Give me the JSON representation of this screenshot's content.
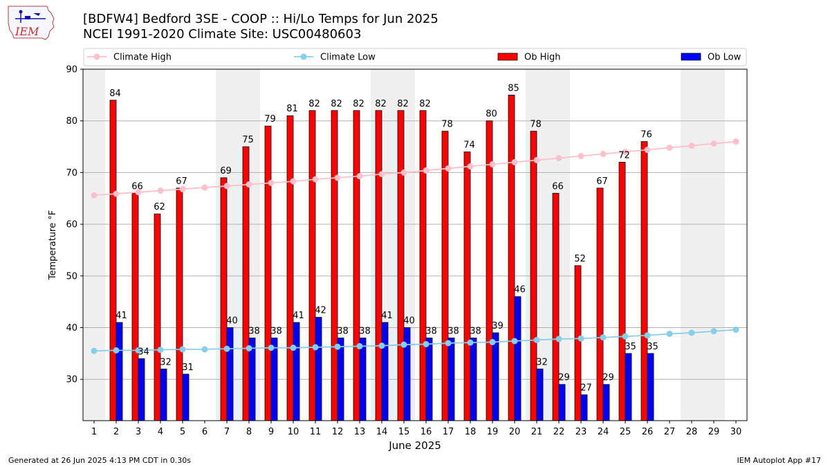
{
  "header": {
    "title_line1": "[BDFW4] Bedford 3SE - COOP :: Hi/Lo Temps for Jun 2025",
    "title_line2": "NCEI 1991-2020 Climate Site: USC00480603",
    "logo_text": "IEM"
  },
  "footer": {
    "generated": "Generated at 26 Jun 2025 4:13 PM CDT in 0.30s",
    "app": "IEM Autoplot App #17"
  },
  "chart_data": {
    "type": "bar",
    "xlabel": "June 2025",
    "ylabel": "Temperature °F",
    "ylim": [
      22,
      90
    ],
    "yticks": [
      30,
      40,
      50,
      60,
      70,
      80,
      90
    ],
    "grid": "horizontal",
    "legend_placement": "top",
    "categories": [
      1,
      2,
      3,
      4,
      5,
      6,
      7,
      8,
      9,
      10,
      11,
      12,
      13,
      14,
      15,
      16,
      17,
      18,
      19,
      20,
      21,
      22,
      23,
      24,
      25,
      26,
      27,
      28,
      29,
      30
    ],
    "weekend_shaded_days": [
      1,
      7,
      8,
      14,
      15,
      21,
      22,
      28,
      29
    ],
    "series": [
      {
        "name": "Climate High",
        "kind": "line",
        "color": "#ffc0cb",
        "values": [
          65.6,
          65.9,
          66.2,
          66.5,
          66.8,
          67.1,
          67.4,
          67.7,
          68.0,
          68.3,
          68.7,
          69.0,
          69.3,
          69.7,
          70.0,
          70.4,
          70.8,
          71.2,
          71.6,
          72.0,
          72.4,
          72.8,
          73.2,
          73.6,
          74.0,
          74.4,
          74.8,
          75.2,
          75.6,
          76.0
        ]
      },
      {
        "name": "Climate Low",
        "kind": "line",
        "color": "#87ceeb",
        "values": [
          35.5,
          35.6,
          35.6,
          35.7,
          35.8,
          35.8,
          35.9,
          36.0,
          36.1,
          36.1,
          36.2,
          36.3,
          36.4,
          36.5,
          36.7,
          36.8,
          37.0,
          37.1,
          37.2,
          37.4,
          37.6,
          37.8,
          37.9,
          38.1,
          38.3,
          38.5,
          38.8,
          39.0,
          39.3,
          39.6
        ]
      },
      {
        "name": "Ob High",
        "kind": "bar",
        "color": "#ff0000",
        "values": [
          null,
          84,
          66,
          62,
          67,
          null,
          69,
          75,
          79,
          81,
          82,
          82,
          82,
          82,
          82,
          82,
          78,
          74,
          80,
          85,
          78,
          66,
          52,
          67,
          72,
          76,
          null,
          null,
          null,
          null
        ]
      },
      {
        "name": "Ob Low",
        "kind": "bar",
        "color": "#0000ff",
        "values": [
          null,
          41,
          34,
          32,
          31,
          null,
          40,
          38,
          38,
          41,
          42,
          38,
          38,
          41,
          40,
          38,
          38,
          38,
          39,
          46,
          32,
          29,
          27,
          29,
          35,
          35,
          null,
          null,
          null,
          null
        ]
      }
    ]
  }
}
